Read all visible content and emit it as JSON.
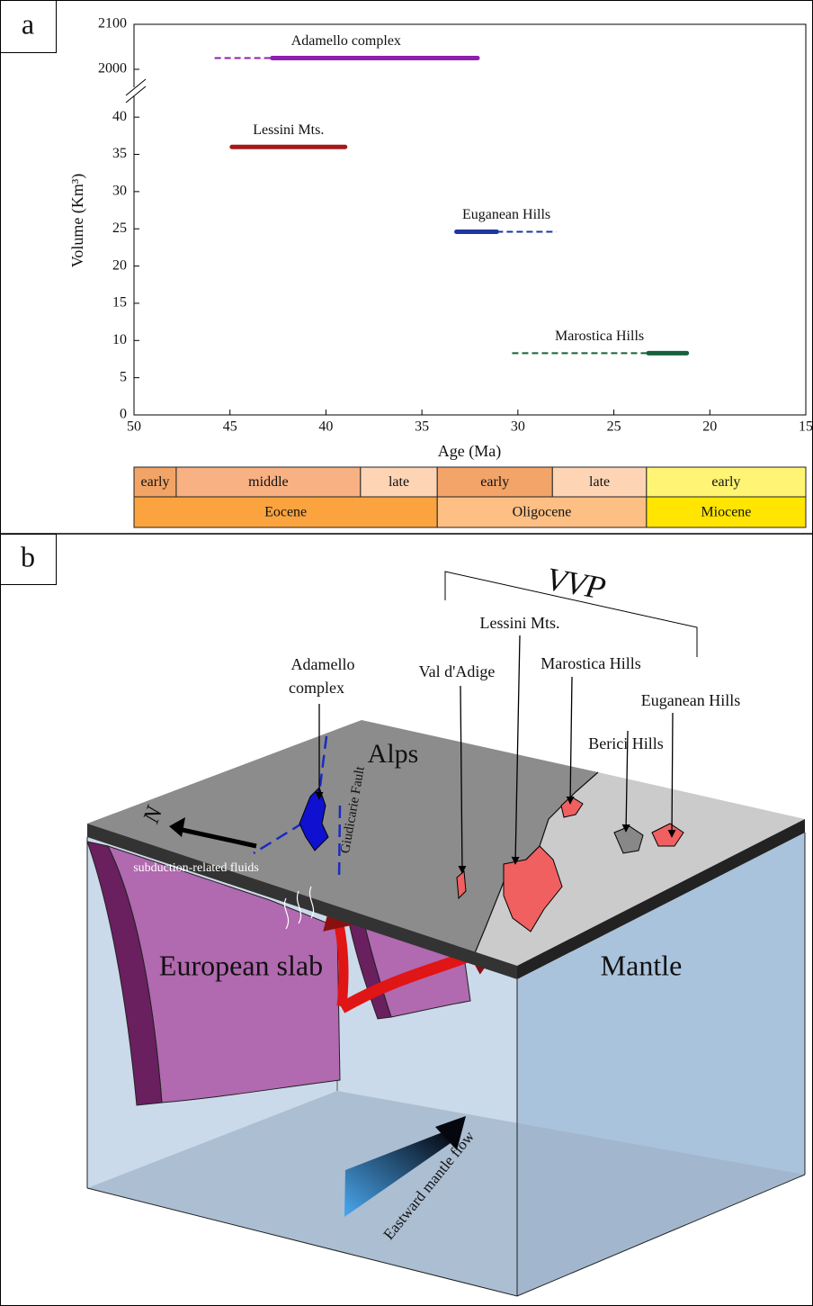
{
  "chart_data": {
    "type": "interval",
    "panel": "a",
    "xlabel": "Age (Ma)",
    "ylabel": "Volume (Km³)",
    "xlim": [
      50,
      15
    ],
    "xticks": [
      50,
      45,
      40,
      35,
      30,
      25,
      20,
      15
    ],
    "ylim": [
      0,
      42.8
    ],
    "yticks": [
      0,
      5,
      10,
      15,
      20,
      25,
      30,
      35,
      40
    ],
    "ylim_upper": [
      1960,
      2100
    ],
    "yticks_upper": [
      2000,
      2100
    ],
    "series": [
      {
        "name": "Adamello complex",
        "color": "#8e1fb0",
        "value": 2025,
        "solid": [
          42.8,
          32.1
        ],
        "dashed": [
          45.8,
          42.8
        ]
      },
      {
        "name": "Lessini Mts.",
        "color": "#a51818",
        "value": 36,
        "solid": [
          44.9,
          39.0
        ]
      },
      {
        "name": "Euganean Hills",
        "color": "#1c37a0",
        "value": 24.6,
        "solid": [
          33.2,
          31.1
        ],
        "dashed": [
          31.1,
          28.0
        ]
      },
      {
        "name": "Marostica Hills",
        "color": "#16613a",
        "value": 8.3,
        "solid": [
          23.2,
          21.2
        ],
        "dashed": [
          30.3,
          23.2
        ]
      }
    ],
    "stages": [
      {
        "name": "early",
        "start": 50,
        "end": 47.8,
        "color": "#f2a466"
      },
      {
        "name": "middle",
        "start": 47.8,
        "end": 38.2,
        "color": "#f8b182"
      },
      {
        "name": "late",
        "start": 38.2,
        "end": 34.2,
        "color": "#fdd4b4"
      },
      {
        "name": "early",
        "start": 34.2,
        "end": 28.2,
        "color": "#f3a469"
      },
      {
        "name": "late",
        "start": 28.2,
        "end": 23.3,
        "color": "#fdd5b5"
      },
      {
        "name": "early",
        "start": 23.3,
        "end": 15,
        "color": "#fff473"
      }
    ],
    "epochs": [
      {
        "name": "Eocene",
        "start": 50,
        "end": 34.2,
        "color": "#fba43f"
      },
      {
        "name": "Oligocene",
        "start": 34.2,
        "end": 23.3,
        "color": "#fdbf84"
      },
      {
        "name": "Miocene",
        "start": 23.3,
        "end": 15,
        "color": "#ffe500"
      }
    ]
  },
  "panel_b": {
    "label": "b",
    "vvp": "VVP",
    "lessini": "Lessini Mts.",
    "val_adige": "Val d'Adige",
    "marostica": "Marostica Hills",
    "adamello": [
      "Adamello",
      "complex"
    ],
    "euganean": "Euganean Hills",
    "berici": "Berici Hills",
    "alps": "Alps",
    "fault": "Giudicarie Fault",
    "north": "N",
    "fluids": "subduction-related fluids",
    "slab": "European slab",
    "mantle": "Mantle",
    "flow": "Eastward mantle flow"
  }
}
